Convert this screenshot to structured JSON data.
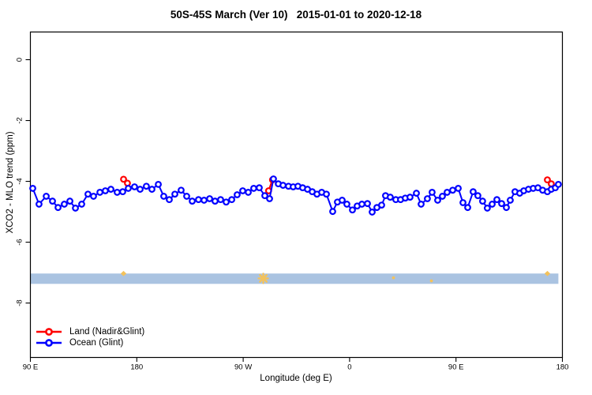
{
  "title": "50S-45S March (Ver 10)   2015-01-01 to 2020-12-18",
  "chart_data": {
    "type": "line",
    "title": "50S-45S March (Ver 10)   2015-01-01 to 2020-12-18",
    "xlabel": "Longitude (deg E)",
    "ylabel": "XCO2 - MLO trend (ppm)",
    "xlim": [
      90,
      540
    ],
    "ylim": [
      -9.79,
      0.91
    ],
    "grid": false,
    "legend_position": "bottom-left",
    "x_ticks": [
      {
        "value": 90,
        "label": "90 E"
      },
      {
        "value": 180,
        "label": "180"
      },
      {
        "value": 270,
        "label": "90 W"
      },
      {
        "value": 360,
        "label": "0"
      },
      {
        "value": 450,
        "label": "90 E"
      },
      {
        "value": 540,
        "label": "180"
      }
    ],
    "y_ticks": [
      {
        "value": 0,
        "label": "0"
      },
      {
        "value": -2,
        "label": "-2"
      },
      {
        "value": -4,
        "label": "-4"
      },
      {
        "value": -6,
        "label": "-6"
      },
      {
        "value": -8,
        "label": "-8"
      }
    ],
    "series": [
      {
        "name": "Land (Nadir&Glint)",
        "color": "#ff0000",
        "marker": "open-circle",
        "style": "line+marker",
        "segments": [
          [
            [
              168.8,
              -3.93
            ],
            [
              172.1,
              -4.06
            ]
          ],
          [
            [
              291.5,
              -4.31
            ],
            [
              294.8,
              -3.95
            ]
          ],
          [
            [
              527.3,
              -3.95
            ],
            [
              530.6,
              -4.08
            ]
          ]
        ]
      },
      {
        "name": "Ocean (Glint)",
        "color": "#0000ff",
        "marker": "open-circle",
        "style": "line+marker",
        "points": [
          [
            92.0,
            -4.23
          ],
          [
            97.3,
            -4.75
          ],
          [
            103.4,
            -4.49
          ],
          [
            108.7,
            -4.65
          ],
          [
            113.4,
            -4.86
          ],
          [
            118.7,
            -4.75
          ],
          [
            123.4,
            -4.65
          ],
          [
            128.1,
            -4.88
          ],
          [
            133.4,
            -4.75
          ],
          [
            138.7,
            -4.42
          ],
          [
            143.4,
            -4.49
          ],
          [
            148.8,
            -4.36
          ],
          [
            153.4,
            -4.31
          ],
          [
            158.1,
            -4.26
          ],
          [
            163.4,
            -4.36
          ],
          [
            168.1,
            -4.34
          ],
          [
            172.8,
            -4.23
          ],
          [
            178.1,
            -4.18
          ],
          [
            182.8,
            -4.26
          ],
          [
            188.1,
            -4.16
          ],
          [
            192.8,
            -4.26
          ],
          [
            198.2,
            -4.1
          ],
          [
            202.8,
            -4.49
          ],
          [
            207.5,
            -4.6
          ],
          [
            212.2,
            -4.42
          ],
          [
            217.5,
            -4.29
          ],
          [
            222.2,
            -4.49
          ],
          [
            226.9,
            -4.65
          ],
          [
            232.2,
            -4.6
          ],
          [
            236.9,
            -4.62
          ],
          [
            241.6,
            -4.57
          ],
          [
            246.2,
            -4.65
          ],
          [
            250.9,
            -4.6
          ],
          [
            255.6,
            -4.68
          ],
          [
            260.3,
            -4.6
          ],
          [
            264.9,
            -4.44
          ],
          [
            269.6,
            -4.31
          ],
          [
            274.3,
            -4.36
          ],
          [
            278.9,
            -4.23
          ],
          [
            283.6,
            -4.21
          ],
          [
            288.3,
            -4.47
          ],
          [
            292.3,
            -4.57
          ],
          [
            295.6,
            -3.92
          ],
          [
            299.7,
            -4.08
          ],
          [
            303.7,
            -4.13
          ],
          [
            308.3,
            -4.16
          ],
          [
            312.3,
            -4.18
          ],
          [
            316.3,
            -4.16
          ],
          [
            320.3,
            -4.21
          ],
          [
            324.4,
            -4.26
          ],
          [
            328.4,
            -4.34
          ],
          [
            332.4,
            -4.42
          ],
          [
            336.4,
            -4.36
          ],
          [
            340.4,
            -4.42
          ],
          [
            345.7,
            -4.99
          ],
          [
            349.7,
            -4.68
          ],
          [
            353.7,
            -4.62
          ],
          [
            357.7,
            -4.75
          ],
          [
            362.4,
            -4.94
          ],
          [
            366.4,
            -4.81
          ],
          [
            370.4,
            -4.75
          ],
          [
            375.1,
            -4.73
          ],
          [
            379.1,
            -5.01
          ],
          [
            383.1,
            -4.86
          ],
          [
            387.1,
            -4.78
          ],
          [
            390.4,
            -4.47
          ],
          [
            394.4,
            -4.52
          ],
          [
            399.1,
            -4.6
          ],
          [
            403.1,
            -4.6
          ],
          [
            407.1,
            -4.55
          ],
          [
            411.1,
            -4.52
          ],
          [
            416.5,
            -4.39
          ],
          [
            420.5,
            -4.75
          ],
          [
            425.8,
            -4.57
          ],
          [
            429.8,
            -4.36
          ],
          [
            434.5,
            -4.62
          ],
          [
            438.5,
            -4.49
          ],
          [
            442.5,
            -4.36
          ],
          [
            447.2,
            -4.29
          ],
          [
            451.9,
            -4.23
          ],
          [
            455.9,
            -4.7
          ],
          [
            459.9,
            -4.86
          ],
          [
            464.5,
            -4.34
          ],
          [
            468.5,
            -4.47
          ],
          [
            472.5,
            -4.65
          ],
          [
            476.5,
            -4.88
          ],
          [
            480.6,
            -4.75
          ],
          [
            484.6,
            -4.6
          ],
          [
            488.6,
            -4.73
          ],
          [
            492.6,
            -4.86
          ],
          [
            495.9,
            -4.62
          ],
          [
            499.9,
            -4.34
          ],
          [
            503.9,
            -4.39
          ],
          [
            507.3,
            -4.31
          ],
          [
            511.3,
            -4.26
          ],
          [
            515.3,
            -4.23
          ],
          [
            519.3,
            -4.21
          ],
          [
            523.3,
            -4.29
          ],
          [
            527.3,
            -4.34
          ],
          [
            530.6,
            -4.26
          ],
          [
            534.0,
            -4.21
          ],
          [
            536.6,
            -4.1
          ]
        ]
      }
    ],
    "coverage_band": {
      "color": "#aac3e1",
      "x_from": 90,
      "x_to": 536.6,
      "value_top": -7.03,
      "value_bottom": -7.37
    },
    "band_marks": {
      "color": "#f3c25c",
      "items": [
        {
          "lon": 168.8,
          "value": -7.03,
          "shape": "tip"
        },
        {
          "lon": 287.0,
          "value": -7.19,
          "shape": "asterisk"
        },
        {
          "lon": 397.1,
          "value": -7.17,
          "shape": "dot"
        },
        {
          "lon": 429.2,
          "value": -7.27,
          "shape": "dot"
        },
        {
          "lon": 527.3,
          "value": -7.03,
          "shape": "tip"
        }
      ]
    }
  },
  "legend": {
    "items": [
      {
        "label": "Land (Nadir&Glint)",
        "color": "#ff0000"
      },
      {
        "label": "Ocean (Glint)",
        "color": "#0000ff"
      }
    ]
  }
}
